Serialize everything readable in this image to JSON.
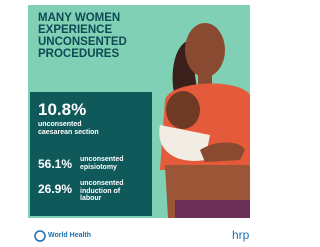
{
  "title_lines": [
    "MANY WOMEN",
    "EXPERIENCE",
    "UNCONSENTED",
    "PROCEDURES"
  ],
  "stats": [
    {
      "value": "10.8%",
      "label_lines": [
        "unconsented",
        "caesarean section"
      ]
    },
    {
      "value": "56.1%",
      "label_lines": [
        "unconsented",
        "episiotomy"
      ]
    },
    {
      "value": "26.9%",
      "label_lines": [
        "unconsented",
        "induction of",
        "labour"
      ]
    }
  ],
  "footer": {
    "left": "World Health",
    "right": "hrp"
  }
}
